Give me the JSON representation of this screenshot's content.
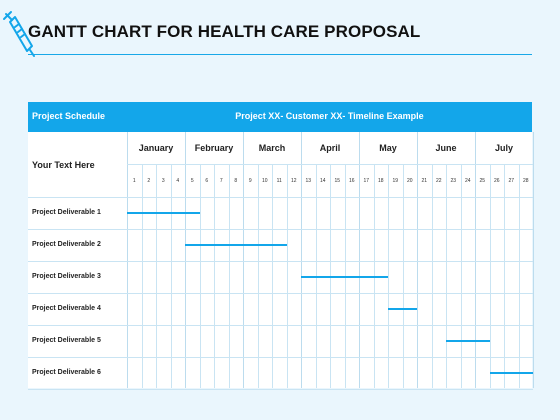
{
  "title": "GANTT CHART FOR HEALTH CARE PROPOSAL",
  "accent_color": "#13a6ea",
  "icon": "syringe-icon",
  "table": {
    "header_left": "Project Schedule",
    "header_right": "Project XX- Customer XX- Timeline Example",
    "subheader_left": "Your Text Here",
    "months": [
      "January",
      "February",
      "March",
      "April",
      "May",
      "June",
      "July"
    ],
    "weeks": [
      "1",
      "2",
      "3",
      "4",
      "5",
      "6",
      "7",
      "8",
      "9",
      "10",
      "11",
      "12",
      "13",
      "14",
      "15",
      "16",
      "17",
      "18",
      "19",
      "20",
      "21",
      "22",
      "23",
      "24",
      "25",
      "26",
      "27",
      "28"
    ]
  },
  "chart_data": {
    "type": "gantt",
    "time_unit": "week",
    "tasks": [
      {
        "label": "Project Deliverable 1",
        "start_week": 1,
        "end_week": 5
      },
      {
        "label": "Project Deliverable 2",
        "start_week": 5,
        "end_week": 11
      },
      {
        "label": "Project Deliverable 3",
        "start_week": 13,
        "end_week": 18
      },
      {
        "label": "Project Deliverable 4",
        "start_week": 19,
        "end_week": 20
      },
      {
        "label": "Project Deliverable 5",
        "start_week": 23,
        "end_week": 25
      },
      {
        "label": "Project Deliverable 6",
        "start_week": 26,
        "end_week": 28
      }
    ]
  }
}
